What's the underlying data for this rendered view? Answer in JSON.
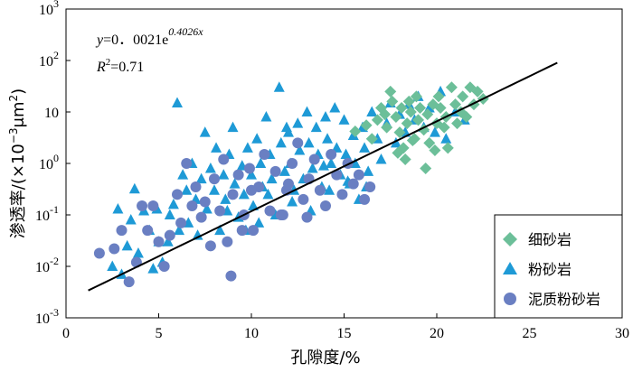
{
  "chart_data": {
    "type": "scatter",
    "x_scale": "linear",
    "y_scale": "log",
    "xlim": [
      0,
      30
    ],
    "ylim": [
      0.001,
      1000
    ],
    "x_ticks": [
      "0",
      "5",
      "10",
      "15",
      "20",
      "25",
      "30"
    ],
    "y_ticks": [
      {
        "base": "10",
        "exp": "-3"
      },
      {
        "base": "10",
        "exp": "-2"
      },
      {
        "base": "10",
        "exp": "-1"
      },
      {
        "base": "10",
        "exp": "0"
      },
      {
        "base": "10",
        "exp": ""
      },
      {
        "base": "10",
        "exp": "2"
      },
      {
        "base": "10",
        "exp": "3"
      }
    ],
    "xlabel": "孔隙度/%",
    "ylabel": {
      "prefix": "渗透率/(×10",
      "exp1": "−3",
      "mid": "μm",
      "exp2": "2",
      "suffix": ")"
    },
    "equation": {
      "y": "y",
      "eq": "=0．0021e",
      "exp": "0.4026x"
    },
    "r2": {
      "r": "R",
      "exp": "2",
      "val": "=0.71"
    },
    "fit": {
      "a": 0.0021,
      "b": 0.4026,
      "x_range": [
        1.2,
        26.5
      ],
      "color": "#000000"
    },
    "series": [
      {
        "name": "细砂岩",
        "marker": "diamond",
        "color": "#6cbf99",
        "points": [
          [
            15.6,
            4.2
          ],
          [
            16.2,
            5.5
          ],
          [
            16.5,
            3.0
          ],
          [
            16.8,
            7.0
          ],
          [
            17.0,
            12.0
          ],
          [
            17.2,
            9.0
          ],
          [
            17.3,
            5.0
          ],
          [
            17.5,
            25.0
          ],
          [
            17.6,
            16.0
          ],
          [
            17.8,
            8.0
          ],
          [
            18.0,
            4.0
          ],
          [
            18.1,
            12.0
          ],
          [
            18.2,
            2.0
          ],
          [
            18.3,
            1.2
          ],
          [
            18.4,
            6.0
          ],
          [
            18.5,
            16.0
          ],
          [
            18.6,
            10.0
          ],
          [
            18.8,
            3.0
          ],
          [
            18.9,
            20.0
          ],
          [
            19.0,
            7.0
          ],
          [
            19.1,
            12.0
          ],
          [
            19.3,
            4.5
          ],
          [
            19.5,
            9.0
          ],
          [
            19.6,
            2.5
          ],
          [
            19.8,
            14.0
          ],
          [
            20.0,
            6.0
          ],
          [
            20.1,
            20.0
          ],
          [
            20.2,
            12.0
          ],
          [
            20.4,
            5.0
          ],
          [
            20.5,
            8.0
          ],
          [
            20.6,
            2.0
          ],
          [
            20.8,
            30.0
          ],
          [
            21.0,
            14.0
          ],
          [
            21.1,
            6.0
          ],
          [
            21.3,
            10.0
          ],
          [
            21.4,
            20.0
          ],
          [
            21.6,
            8.0
          ],
          [
            21.8,
            30.0
          ],
          [
            22.0,
            14.0
          ],
          [
            22.2,
            25.0
          ],
          [
            22.5,
            18.0
          ],
          [
            17.9,
            1.6
          ],
          [
            18.7,
            2.8
          ],
          [
            19.9,
            1.8
          ],
          [
            19.4,
            0.8
          ]
        ]
      },
      {
        "name": "粉砂岩",
        "marker": "triangle",
        "color": "#1e9ad6",
        "points": [
          [
            2.5,
            0.01
          ],
          [
            2.8,
            0.13
          ],
          [
            3.0,
            0.007
          ],
          [
            3.3,
            0.025
          ],
          [
            3.5,
            0.08
          ],
          [
            3.7,
            0.32
          ],
          [
            3.9,
            0.018
          ],
          [
            4.2,
            0.12
          ],
          [
            4.5,
            0.05
          ],
          [
            4.7,
            0.009
          ],
          [
            4.9,
            0.13
          ],
          [
            5.0,
            0.03
          ],
          [
            5.2,
            0.012
          ],
          [
            5.5,
            0.03
          ],
          [
            5.6,
            0.1
          ],
          [
            5.8,
            0.16
          ],
          [
            6.0,
            15.0
          ],
          [
            6.1,
            0.05
          ],
          [
            6.3,
            0.6
          ],
          [
            6.5,
            0.3
          ],
          [
            6.6,
            0.07
          ],
          [
            6.8,
            1.0
          ],
          [
            7.0,
            0.2
          ],
          [
            7.1,
            0.04
          ],
          [
            7.3,
            0.5
          ],
          [
            7.5,
            4.0
          ],
          [
            7.6,
            0.13
          ],
          [
            7.8,
            0.8
          ],
          [
            8.0,
            0.3
          ],
          [
            8.1,
            2.0
          ],
          [
            8.3,
            0.05
          ],
          [
            8.5,
            0.6
          ],
          [
            8.6,
            0.2
          ],
          [
            8.8,
            1.5
          ],
          [
            9.0,
            5.0
          ],
          [
            9.1,
            0.4
          ],
          [
            9.3,
            0.09
          ],
          [
            9.5,
            0.9
          ],
          [
            9.6,
            0.25
          ],
          [
            9.8,
            2.0
          ],
          [
            10.0,
            0.6
          ],
          [
            10.1,
            0.15
          ],
          [
            10.3,
            3.0
          ],
          [
            10.5,
            1.0
          ],
          [
            10.6,
            0.35
          ],
          [
            10.8,
            8.0
          ],
          [
            11.0,
            1.5
          ],
          [
            11.1,
            0.5
          ],
          [
            11.3,
            0.1
          ],
          [
            11.5,
            30.0
          ],
          [
            11.6,
            2.5
          ],
          [
            11.8,
            0.7
          ],
          [
            12.0,
            4.0
          ],
          [
            12.1,
            1.0
          ],
          [
            12.3,
            0.3
          ],
          [
            12.5,
            6.0
          ],
          [
            12.6,
            1.8
          ],
          [
            12.8,
            0.5
          ],
          [
            13.0,
            10.0
          ],
          [
            13.1,
            2.5
          ],
          [
            13.3,
            0.8
          ],
          [
            13.5,
            5.0
          ],
          [
            13.6,
            1.5
          ],
          [
            13.8,
            0.35
          ],
          [
            14.0,
            8.0
          ],
          [
            14.1,
            3.0
          ],
          [
            14.3,
            1.0
          ],
          [
            14.5,
            12.0
          ],
          [
            14.6,
            2.0
          ],
          [
            14.8,
            0.6
          ],
          [
            15.0,
            7.0
          ],
          [
            15.1,
            1.5
          ],
          [
            15.3,
            0.4
          ],
          [
            15.5,
            3.5
          ],
          [
            15.6,
            1.0
          ],
          [
            15.8,
            0.2
          ],
          [
            16.0,
            5.0
          ],
          [
            16.1,
            2.0
          ],
          [
            16.3,
            0.7
          ],
          [
            16.5,
            10.0
          ],
          [
            16.8,
            3.0
          ],
          [
            17.0,
            1.2
          ],
          [
            17.3,
            6.0
          ],
          [
            17.5,
            15.0
          ],
          [
            17.8,
            2.5
          ],
          [
            18.0,
            9.0
          ],
          [
            18.3,
            4.0
          ],
          [
            18.5,
            14.0
          ],
          [
            18.8,
            7.0
          ],
          [
            19.0,
            20.0
          ],
          [
            19.3,
            5.0
          ],
          [
            19.6,
            12.0
          ],
          [
            19.9,
            4.0
          ],
          [
            20.2,
            25.0
          ],
          [
            20.5,
            3.0
          ],
          [
            21.0,
            10.0
          ],
          [
            21.5,
            7.0
          ],
          [
            8.7,
            0.12
          ],
          [
            9.7,
            0.05
          ],
          [
            10.9,
            0.25
          ],
          [
            12.2,
            0.18
          ],
          [
            13.2,
            0.12
          ],
          [
            14.2,
            0.3
          ],
          [
            15.2,
            0.45
          ],
          [
            16.2,
            0.35
          ],
          [
            11.9,
            5.0
          ],
          [
            13.9,
            0.9
          ],
          [
            10.4,
            0.07
          ]
        ]
      },
      {
        "name": "泥质粉砂岩",
        "marker": "circle",
        "color": "#6a7fc2",
        "points": [
          [
            1.8,
            0.018
          ],
          [
            2.6,
            0.022
          ],
          [
            3.0,
            0.05
          ],
          [
            3.4,
            0.005
          ],
          [
            3.8,
            0.012
          ],
          [
            4.1,
            0.15
          ],
          [
            4.4,
            0.05
          ],
          [
            4.7,
            0.15
          ],
          [
            5.0,
            0.03
          ],
          [
            5.3,
            0.01
          ],
          [
            5.6,
            0.04
          ],
          [
            6.0,
            0.25
          ],
          [
            6.2,
            0.07
          ],
          [
            6.5,
            1.0
          ],
          [
            6.8,
            0.15
          ],
          [
            7.0,
            0.35
          ],
          [
            7.3,
            0.09
          ],
          [
            7.5,
            0.18
          ],
          [
            7.8,
            0.025
          ],
          [
            8.0,
            0.5
          ],
          [
            8.3,
            0.12
          ],
          [
            8.5,
            1.2
          ],
          [
            8.7,
            0.03
          ],
          [
            8.9,
            0.0065
          ],
          [
            9.0,
            0.25
          ],
          [
            9.3,
            0.6
          ],
          [
            9.6,
            0.1
          ],
          [
            9.9,
            0.8
          ],
          [
            10.1,
            0.05
          ],
          [
            10.4,
            0.35
          ],
          [
            10.7,
            1.5
          ],
          [
            11.0,
            0.12
          ],
          [
            11.3,
            0.7
          ],
          [
            11.6,
            0.1
          ],
          [
            11.9,
            0.3
          ],
          [
            12.2,
            1.0
          ],
          [
            12.5,
            2.5
          ],
          [
            12.8,
            0.2
          ],
          [
            13.1,
            0.5
          ],
          [
            13.4,
            1.2
          ],
          [
            13.7,
            0.3
          ],
          [
            14.0,
            0.15
          ],
          [
            14.3,
            1.5
          ],
          [
            14.6,
            0.6
          ],
          [
            14.9,
            0.25
          ],
          [
            15.2,
            1.0
          ],
          [
            15.5,
            0.4
          ],
          [
            15.8,
            0.6
          ],
          [
            16.1,
            0.2
          ],
          [
            16.4,
            0.35
          ],
          [
            12.0,
            0.4
          ],
          [
            10.0,
            0.3
          ],
          [
            9.5,
            0.05
          ],
          [
            11.7,
            0.1
          ],
          [
            13.0,
            0.09
          ]
        ]
      }
    ],
    "legend": {
      "position": "bottom-right"
    }
  }
}
